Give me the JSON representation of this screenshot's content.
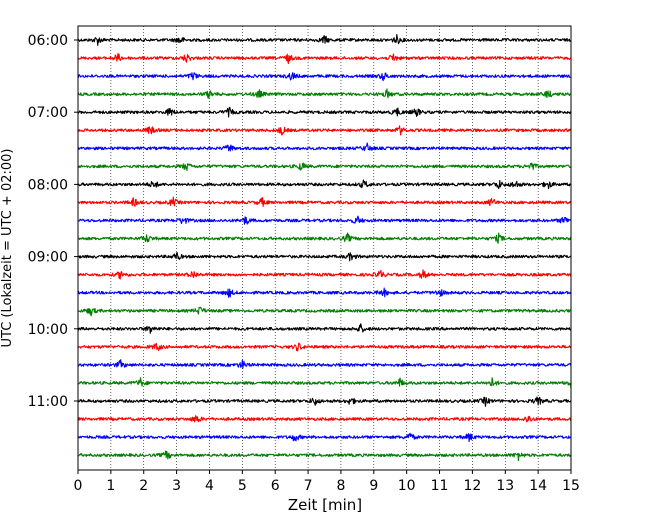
{
  "chart_data": {
    "type": "line",
    "title": "",
    "xlabel": "Zeit  [min]",
    "ylabel": "UTC (Lokalzeit = UTC + 02:00)",
    "xlim": [
      0,
      15
    ],
    "x_ticks": [
      "0",
      "1",
      "2",
      "3",
      "4",
      "5",
      "6",
      "7",
      "8",
      "9",
      "10",
      "11",
      "12",
      "13",
      "14",
      "15"
    ],
    "y_tick_labels": [
      "06:00",
      "07:00",
      "08:00",
      "09:00",
      "10:00",
      "11:00"
    ],
    "grid": "vertical dotted lines at each minute",
    "trace_interval_minutes": 15,
    "start_time_utc": "06:00",
    "trace_count": 24,
    "color_cycle": [
      "#000000",
      "#ff0000",
      "#0000ff",
      "#008000"
    ],
    "traces": [
      {
        "start": "06:00",
        "color": "#000000",
        "events_min": [
          0.6,
          3.1,
          7.5,
          9.7
        ]
      },
      {
        "start": "06:15",
        "color": "#ff0000",
        "events_min": [
          1.2,
          3.3,
          6.4,
          9.6
        ]
      },
      {
        "start": "06:30",
        "color": "#0000ff",
        "events_min": [
          3.5,
          6.5,
          9.3
        ]
      },
      {
        "start": "06:45",
        "color": "#008000",
        "events_min": [
          4.0,
          5.5,
          9.4,
          14.3
        ]
      },
      {
        "start": "07:00",
        "color": "#000000",
        "events_min": [
          2.8,
          4.6,
          9.7,
          10.3
        ]
      },
      {
        "start": "07:15",
        "color": "#ff0000",
        "events_min": [
          2.2,
          6.2,
          9.8
        ]
      },
      {
        "start": "07:30",
        "color": "#0000ff",
        "events_min": [
          4.6,
          8.8
        ]
      },
      {
        "start": "07:45",
        "color": "#008000",
        "events_min": [
          3.3,
          6.8,
          13.8
        ]
      },
      {
        "start": "08:00",
        "color": "#000000",
        "events_min": [
          2.3,
          8.7,
          12.8,
          13.3,
          14.3
        ]
      },
      {
        "start": "08:15",
        "color": "#ff0000",
        "events_min": [
          1.7,
          2.9,
          5.6,
          12.6
        ]
      },
      {
        "start": "08:30",
        "color": "#0000ff",
        "events_min": [
          3.2,
          5.1,
          8.5,
          14.8
        ]
      },
      {
        "start": "08:45",
        "color": "#008000",
        "events_min": [
          2.1,
          8.2,
          12.8
        ]
      },
      {
        "start": "09:00",
        "color": "#000000",
        "events_min": [
          3.0,
          8.3
        ]
      },
      {
        "start": "09:15",
        "color": "#ff0000",
        "events_min": [
          1.3,
          3.5,
          9.2,
          10.5
        ]
      },
      {
        "start": "09:30",
        "color": "#0000ff",
        "events_min": [
          4.6,
          9.3,
          11.0
        ]
      },
      {
        "start": "09:45",
        "color": "#008000",
        "events_min": [
          0.4,
          3.7
        ]
      },
      {
        "start": "10:00",
        "color": "#000000",
        "events_min": [
          2.2,
          8.6
        ]
      },
      {
        "start": "10:15",
        "color": "#ff0000",
        "events_min": [
          2.4,
          6.7
        ]
      },
      {
        "start": "10:30",
        "color": "#0000ff",
        "events_min": [
          1.3,
          5.0
        ]
      },
      {
        "start": "10:45",
        "color": "#008000",
        "events_min": [
          1.9,
          9.8,
          12.6,
          15.0
        ]
      },
      {
        "start": "11:00",
        "color": "#000000",
        "events_min": [
          7.2,
          8.3,
          12.4,
          14.0
        ]
      },
      {
        "start": "11:15",
        "color": "#ff0000",
        "events_min": [
          3.6,
          13.7
        ]
      },
      {
        "start": "11:30",
        "color": "#0000ff",
        "events_min": [
          6.6,
          10.1,
          11.9
        ]
      },
      {
        "start": "11:45",
        "color": "#008000",
        "events_min": [
          2.7,
          13.4
        ]
      }
    ]
  }
}
